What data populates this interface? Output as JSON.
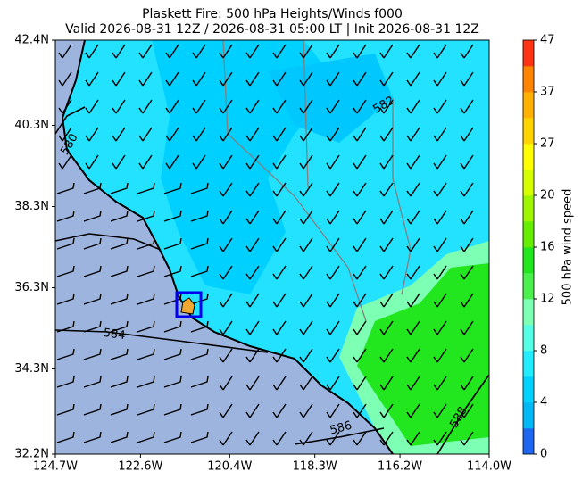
{
  "chart_data": {
    "type": "map",
    "title": "Plaskett Fire: 500 hPa Heights/Winds f000",
    "subtitle": "Valid 2026-08-31 12Z / 2026-08-31 05:00 LT | Init 2026-08-31 12Z",
    "xlim": [
      -124.7,
      -114.0
    ],
    "ylim": [
      32.2,
      42.4
    ],
    "xticks": [
      {
        "value": -124.7,
        "label": "124.7W"
      },
      {
        "value": -122.6,
        "label": "122.6W"
      },
      {
        "value": -120.4,
        "label": "120.4W"
      },
      {
        "value": -118.3,
        "label": "118.3W"
      },
      {
        "value": -116.2,
        "label": "116.2W"
      },
      {
        "value": -114.0,
        "label": "114.0W"
      }
    ],
    "yticks": [
      {
        "value": 32.2,
        "label": "32.2N"
      },
      {
        "value": 34.3,
        "label": "34.3N"
      },
      {
        "value": 36.3,
        "label": "36.3N"
      },
      {
        "value": 38.3,
        "label": "38.3N"
      },
      {
        "value": 40.3,
        "label": "40.3N"
      },
      {
        "value": 42.4,
        "label": "42.4N"
      }
    ],
    "contour_labels": [
      "580",
      "582",
      "584",
      "586",
      "588"
    ],
    "colorbar": {
      "label": "500 hPa wind speed",
      "ticks": [
        0,
        4,
        8,
        12,
        16,
        20,
        27,
        37,
        47
      ],
      "colors": [
        "#1c66f0",
        "#00b8f5",
        "#00d2ff",
        "#22ecff",
        "#55ffe6",
        "#7dffb4",
        "#4cf04c",
        "#22e61e",
        "#66ee00",
        "#9ef500",
        "#d6ff00",
        "#ffff00",
        "#ffd400",
        "#ffb000",
        "#ff8400",
        "#ff3414"
      ]
    }
  }
}
